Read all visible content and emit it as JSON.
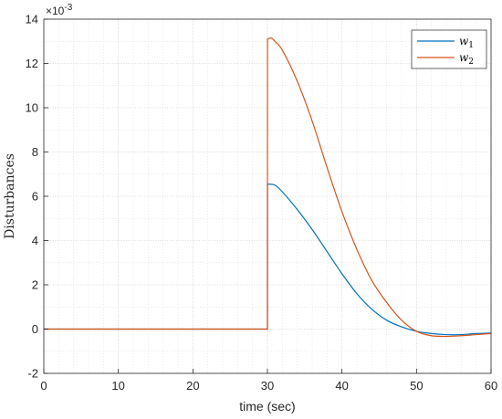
{
  "chart_data": {
    "type": "line",
    "xlabel": "time (sec)",
    "ylabel": "Disturbances",
    "xlim": [
      0,
      60
    ],
    "ylim": [
      -0.002,
      0.014
    ],
    "x_ticks": [
      0,
      10,
      20,
      30,
      40,
      50,
      60
    ],
    "y_ticks": [
      -2,
      0,
      2,
      4,
      6,
      8,
      10,
      12,
      14
    ],
    "y_exponent": "×10",
    "y_exponent_power": "-3",
    "grid": true,
    "minor_grid": true,
    "legend_position": "top-right",
    "series": [
      {
        "name": "w",
        "subscript": "1",
        "color": "#0072BD",
        "x": [
          0,
          30,
          30.01,
          31,
          32,
          34,
          36,
          38,
          40,
          42,
          44,
          46,
          48,
          50,
          52,
          54,
          56,
          58,
          60
        ],
        "y": [
          0,
          0,
          0.00655,
          0.0065,
          0.0062,
          0.0054,
          0.0045,
          0.0035,
          0.0025,
          0.0016,
          0.0009,
          0.0004,
          0.0001,
          -0.0001,
          -0.0002,
          -0.00025,
          -0.00025,
          -0.0002,
          -0.00018
        ]
      },
      {
        "name": "w",
        "subscript": "2",
        "color": "#D95319",
        "x": [
          0,
          30,
          30.01,
          30.5,
          31,
          32,
          34,
          36,
          38,
          40,
          42,
          44,
          46,
          48,
          50,
          52,
          54,
          56,
          58,
          60
        ],
        "y": [
          0,
          0,
          0.0131,
          0.01315,
          0.013,
          0.0126,
          0.0112,
          0.0094,
          0.0073,
          0.0053,
          0.0036,
          0.0022,
          0.0012,
          0.0004,
          -0.0001,
          -0.0003,
          -0.00033,
          -0.0003,
          -0.00025,
          -0.0002
        ]
      }
    ]
  }
}
